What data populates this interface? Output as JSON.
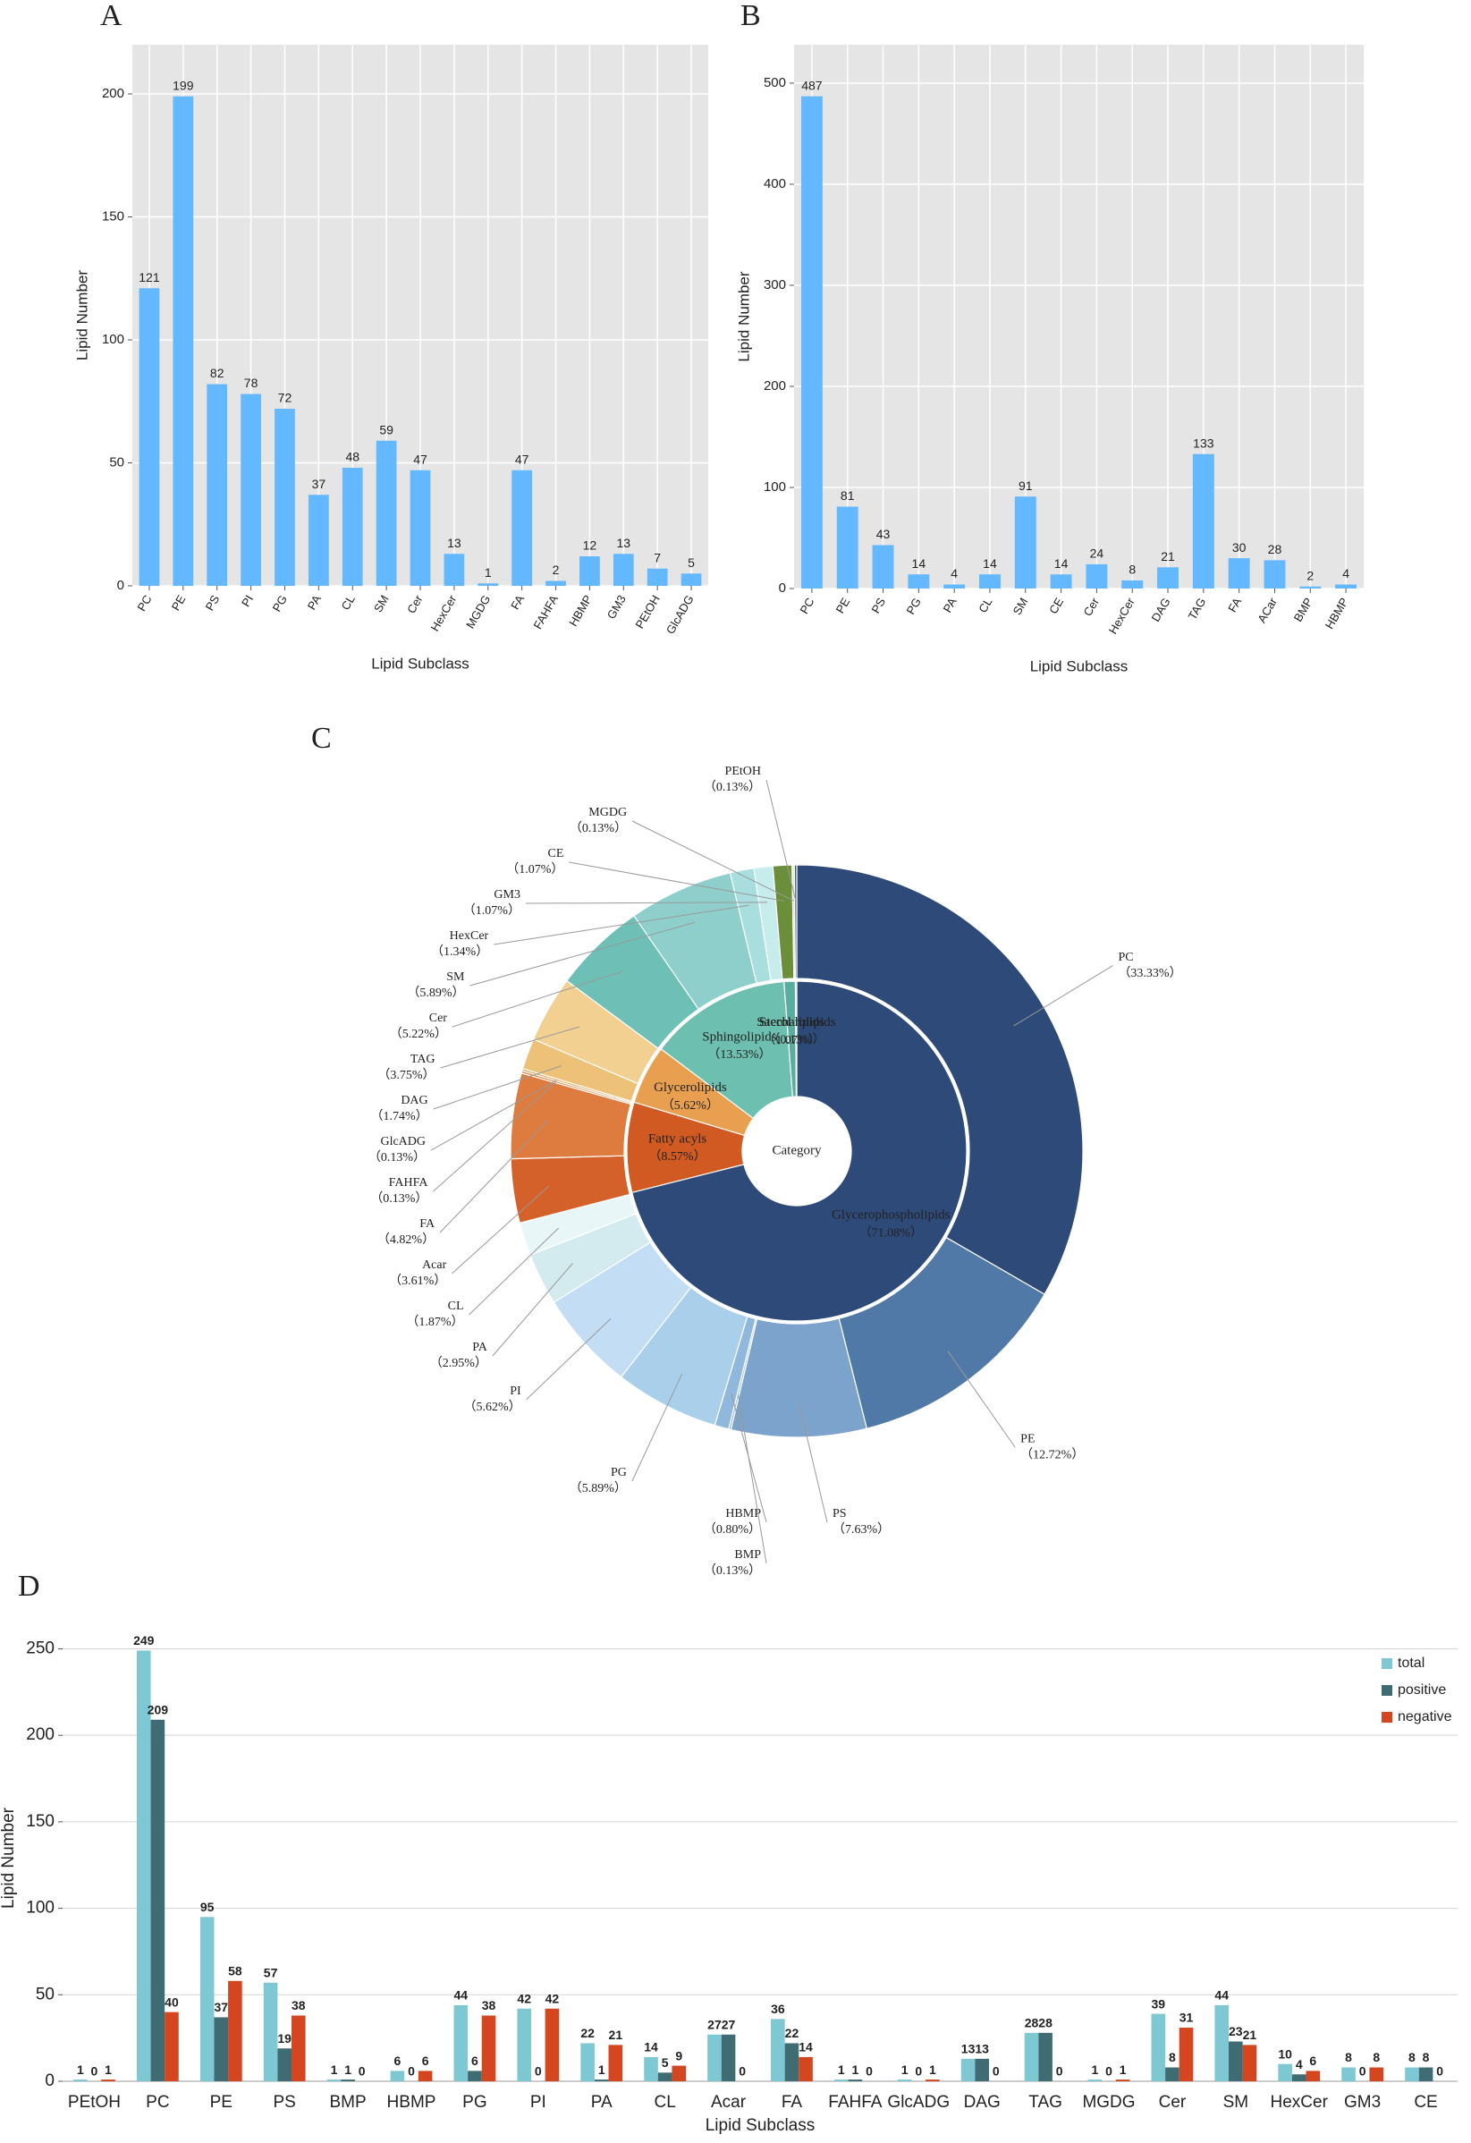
{
  "chart_data": [
    {
      "type": "bar",
      "panel_label": "A",
      "ylabel": "Lipid Number",
      "xlabel": "Lipid Subclass",
      "categories": [
        "PC",
        "PE",
        "PS",
        "PI",
        "PG",
        "PA",
        "CL",
        "SM",
        "Cer",
        "HexCer",
        "MGDG",
        "FA",
        "FAHFA",
        "HBMP",
        "GM3",
        "PEtOH",
        "GlcADG"
      ],
      "values": [
        121,
        199,
        82,
        78,
        72,
        37,
        48,
        59,
        47,
        13,
        1,
        47,
        2,
        12,
        13,
        7,
        5
      ],
      "color": "#63b8ff",
      "ylim": [
        0,
        220
      ],
      "yticks": [
        0,
        50,
        100,
        150,
        200
      ],
      "grid": true
    },
    {
      "type": "bar",
      "panel_label": "B",
      "ylabel": "Lipid Number",
      "xlabel": "Lipid Subclass",
      "categories": [
        "PC",
        "PE",
        "PS",
        "PG",
        "PA",
        "CL",
        "SM",
        "CE",
        "Cer",
        "HexCer",
        "DAG",
        "TAG",
        "FA",
        "ACar",
        "BMP",
        "HBMP"
      ],
      "values": [
        487,
        81,
        43,
        14,
        4,
        14,
        91,
        14,
        24,
        8,
        21,
        133,
        30,
        28,
        2,
        4
      ],
      "color": "#63b8ff",
      "ylim": [
        0,
        538
      ],
      "yticks": [
        0,
        100,
        200,
        300,
        400,
        500
      ],
      "grid": true
    },
    {
      "type": "sunburst",
      "panel_label": "C",
      "center_label": "Category",
      "inner": {
        "labels": [
          "Glycerophospholipids",
          "Fatty acyls",
          "Glycerolipids",
          "Sphingolipids",
          "Sterol lipids",
          "Saccharolipids"
        ],
        "values": [
          71.08,
          8.57,
          5.62,
          13.53,
          1.07,
          0.13
        ],
        "value_labels": [
          "（71.08%）",
          "（8.57%）",
          "（5.62%）",
          "（13.53%）",
          "（1.07%）",
          "（0.13%）"
        ],
        "colors": [
          "#2e4a78",
          "#d05a22",
          "#e8a050",
          "#6dbfaf",
          "#5aaea0",
          "#9fd3c8"
        ]
      },
      "outer": {
        "labels": [
          "PC",
          "PE",
          "PS",
          "BMP",
          "HBMP",
          "PG",
          "PI",
          "PA",
          "CL",
          "Acar",
          "FA",
          "FAHFA",
          "GlcADG",
          "DAG",
          "TAG",
          "Cer",
          "SM",
          "HexCer",
          "GM3",
          "CE",
          "MGDG",
          "PEtOH"
        ],
        "values": [
          33.33,
          12.72,
          7.63,
          0.13,
          0.8,
          5.89,
          5.62,
          2.95,
          1.87,
          3.61,
          4.82,
          0.13,
          0.13,
          1.74,
          3.75,
          5.22,
          5.89,
          1.34,
          1.07,
          1.07,
          0.13,
          0.13
        ],
        "value_labels": [
          "（33.33%）",
          "（12.72%）",
          "（7.63%）",
          "（0.13%）",
          "（0.80%）",
          "（5.89%）",
          "（5.62%）",
          "（2.95%）",
          "（1.87%）",
          "（3.61%）",
          "（4.82%）",
          "（0.13%）",
          "（0.13%）",
          "（1.74%）",
          "（3.75%）",
          "（5.22%）",
          "（5.89%）",
          "（1.34%）",
          "（1.07%）",
          "（1.07%）",
          "（0.13%）",
          "（0.13%）"
        ],
        "colors": [
          "#2e4a78",
          "#5079a8",
          "#7ca3cc",
          "#9ac0e0",
          "#8fb8dc",
          "#a9cfeb",
          "#c3def4",
          "#d3ebee",
          "#e8f6f7",
          "#d4602a",
          "#dd7c3e",
          "#e38a4a",
          "#e9a55a",
          "#eec178",
          "#f2d091",
          "#6ebfb6",
          "#8ecfcb",
          "#a8dedd",
          "#c7ecec",
          "#6b8e3a",
          "#d8e7c8",
          "#3b5580"
        ]
      }
    },
    {
      "type": "grouped_bar",
      "panel_label": "D",
      "ylabel": "Lipid  Number",
      "xlabel": "Lipid Subclass",
      "categories": [
        "PEtOH",
        "PC",
        "PE",
        "PS",
        "BMP",
        "HBMP",
        "PG",
        "PI",
        "PA",
        "CL",
        "Acar",
        "FA",
        "FAHFA",
        "GlcADG",
        "DAG",
        "TAG",
        "MGDG",
        "Cer",
        "SM",
        "HexCer",
        "GM3",
        "CE"
      ],
      "series": [
        {
          "name": "total",
          "color": "#7ec8d3",
          "values": [
            1,
            249,
            95,
            57,
            1,
            6,
            44,
            42,
            22,
            14,
            27,
            36,
            1,
            1,
            13,
            28,
            1,
            39,
            44,
            10,
            8,
            8
          ]
        },
        {
          "name": "positive",
          "color": "#3f6b73",
          "values": [
            0,
            209,
            37,
            19,
            1,
            0,
            6,
            0,
            1,
            5,
            27,
            22,
            1,
            0,
            13,
            28,
            0,
            8,
            23,
            4,
            0,
            8
          ]
        },
        {
          "name": "negative",
          "color": "#d3461f",
          "values": [
            1,
            40,
            58,
            38,
            0,
            6,
            38,
            42,
            21,
            9,
            0,
            14,
            0,
            1,
            0,
            0,
            1,
            31,
            21,
            6,
            8,
            0
          ]
        }
      ],
      "ylim": [
        0,
        258
      ],
      "yticks": [
        0,
        50,
        100,
        150,
        200,
        250
      ],
      "grid": true,
      "legend": "top-right"
    }
  ]
}
